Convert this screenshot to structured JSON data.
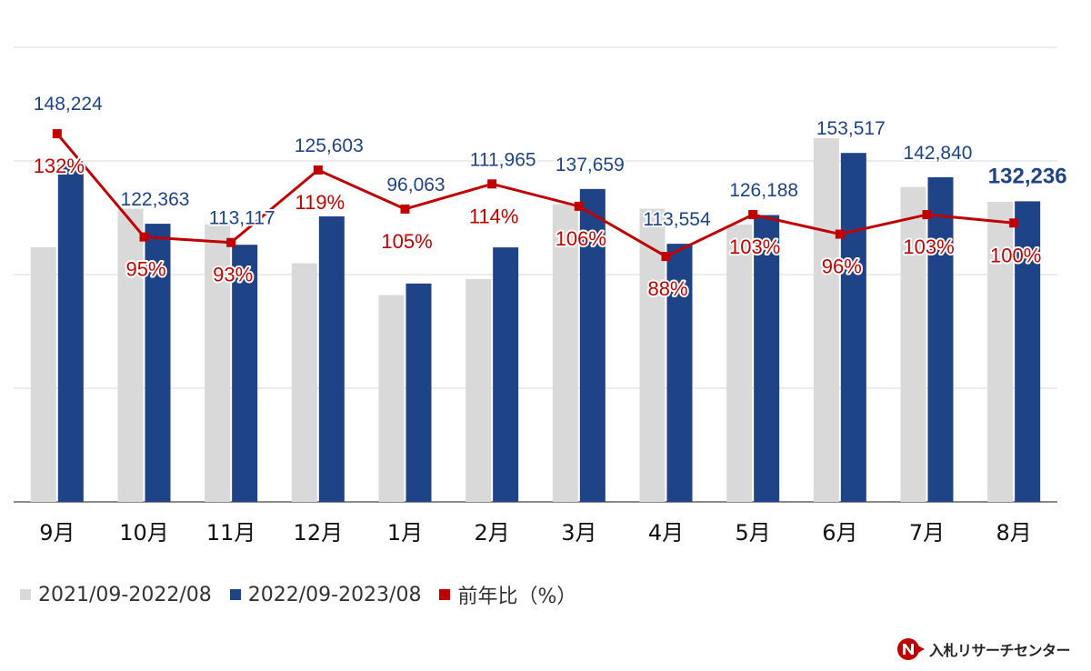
{
  "chart_data": {
    "type": "bar",
    "categories": [
      "9月",
      "10月",
      "11月",
      "12月",
      "1月",
      "2月",
      "3月",
      "4月",
      "5月",
      "6月",
      "7月",
      "8月"
    ],
    "series": [
      {
        "name": "2021/09-2022/08",
        "color": "#d9d9d9",
        "values": [
          112000,
          129000,
          122000,
          105000,
          91000,
          98000,
          131000,
          129000,
          122000,
          160000,
          138500,
          132000
        ]
      },
      {
        "name": "2022/09-2023/08",
        "color": "#1f4387",
        "values": [
          148224,
          122363,
          113117,
          125603,
          96063,
          111965,
          137659,
          113554,
          126188,
          153517,
          142840,
          132236
        ],
        "labels": [
          "148,224",
          "122,363",
          "113,117",
          "125,603",
          "96,063",
          "111,965",
          "137,659",
          "113,554",
          "126,188",
          "153,517",
          "142,840",
          "132,236"
        ]
      },
      {
        "name": "前年比（%）",
        "color": "#c00000",
        "axis": "right",
        "values": [
          132,
          95,
          93,
          119,
          105,
          114,
          106,
          88,
          103,
          96,
          103,
          100
        ],
        "labels": [
          "132%",
          "95%",
          "93%",
          "119%",
          "105%",
          "114%",
          "106%",
          "88%",
          "103%",
          "96%",
          "103%",
          "100%"
        ]
      }
    ],
    "ylim": [
      0,
      200000
    ],
    "y2lim": [
      0,
      163
    ],
    "gridlines": 4,
    "legend_position": "bottom-left"
  },
  "legend": {
    "item1": "2021/09-2022/08",
    "item2": "2022/09-2023/08",
    "item3": "前年比（%）"
  },
  "brand": {
    "name": "入札リサーチセンター",
    "accent": "#c00000"
  }
}
